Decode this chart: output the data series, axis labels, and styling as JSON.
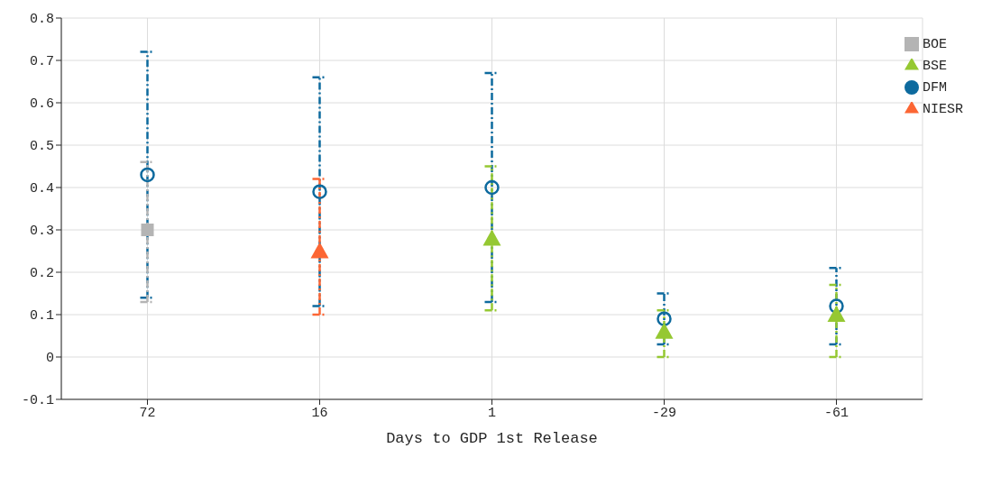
{
  "chart_data": {
    "type": "scatter",
    "xlabel": "Days to GDP 1st Release",
    "categories": [
      "72",
      "16",
      "1",
      "-29",
      "-61"
    ],
    "ylim": [
      -0.1,
      0.8
    ],
    "yticks": [
      -0.1,
      0,
      0.1,
      0.2,
      0.3,
      0.4,
      0.5,
      0.6,
      0.7,
      0.8
    ],
    "grid": true,
    "legend": "top right",
    "series": [
      {
        "name": "DFM",
        "color": "#0d6a9e",
        "marker": "circle",
        "values": [
          0.43,
          0.39,
          0.4,
          0.09,
          0.12
        ],
        "errors": [
          [
            0.14,
            0.72
          ],
          [
            0.12,
            0.66
          ],
          [
            0.13,
            0.67
          ],
          [
            0.03,
            0.15
          ],
          [
            0.03,
            0.21
          ]
        ]
      },
      {
        "name": "BOE",
        "color": "#b4b4b4",
        "marker": "square",
        "values": [
          0.3,
          null,
          null,
          null,
          null
        ],
        "errors": [
          [
            0.13,
            0.46
          ],
          null,
          null,
          null,
          null
        ]
      },
      {
        "name": "NIESR",
        "color": "#fc6634",
        "marker": "triangle",
        "values": [
          null,
          0.25,
          null,
          null,
          null
        ],
        "errors": [
          null,
          [
            0.1,
            0.42
          ],
          null,
          null,
          null
        ]
      },
      {
        "name": "BSE",
        "color": "#95c832",
        "marker": "triangle",
        "values": [
          null,
          null,
          0.28,
          0.06,
          0.1
        ],
        "errors": [
          null,
          null,
          [
            0.11,
            0.45
          ],
          [
            0,
            0.11
          ],
          [
            0,
            0.17
          ]
        ]
      }
    ]
  }
}
